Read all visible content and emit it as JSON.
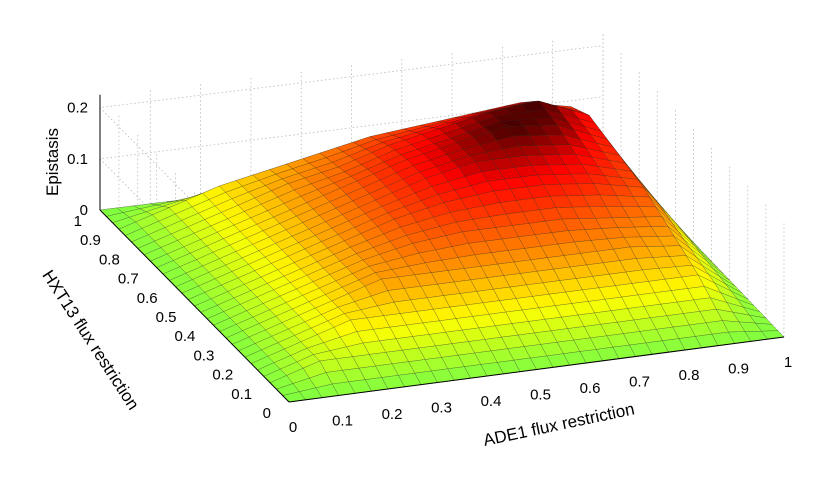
{
  "chart_data": {
    "type": "surface",
    "xlabel": "ADE1 flux restriction",
    "ylabel": "HXT13 flux restriction",
    "zlabel": "Epistasis",
    "xlim": [
      0,
      1
    ],
    "ylim": [
      0,
      1
    ],
    "zlim": [
      0,
      0.2
    ],
    "x_ticks": [
      "0",
      "0.1",
      "0.2",
      "0.3",
      "0.4",
      "0.5",
      "0.6",
      "0.7",
      "0.8",
      "0.9",
      "1"
    ],
    "y_ticks": [
      "0",
      "0.1",
      "0.2",
      "0.3",
      "0.4",
      "0.5",
      "0.6",
      "0.7",
      "0.8",
      "0.9",
      "1"
    ],
    "z_ticks": [
      "0",
      "0.1",
      "0.2"
    ],
    "grid": true,
    "colormap": [
      "#7fff40",
      "#ffff00",
      "#ff8000",
      "#ff0000",
      "#000000"
    ],
    "grid_resolution": 30,
    "x": [
      0,
      0.1,
      0.2,
      0.3,
      0.4,
      0.5,
      0.6,
      0.7,
      0.8,
      0.9,
      1
    ],
    "y": [
      0,
      0.1,
      0.2,
      0.3,
      0.4,
      0.5,
      0.6,
      0.7,
      0.8,
      0.9,
      1
    ],
    "z": [
      [
        0,
        0,
        0,
        0,
        0,
        0,
        0,
        0,
        0,
        0,
        0
      ],
      [
        0,
        0.03,
        0.03,
        0.03,
        0.03,
        0.03,
        0.03,
        0.03,
        0.03,
        0.03,
        0
      ],
      [
        0,
        0.03,
        0.06,
        0.06,
        0.06,
        0.06,
        0.06,
        0.06,
        0.06,
        0.06,
        0
      ],
      [
        0,
        0.03,
        0.06,
        0.09,
        0.09,
        0.09,
        0.09,
        0.09,
        0.09,
        0.08,
        0
      ],
      [
        0,
        0.03,
        0.06,
        0.09,
        0.11,
        0.12,
        0.12,
        0.12,
        0.11,
        0.1,
        0
      ],
      [
        0,
        0.03,
        0.06,
        0.09,
        0.12,
        0.14,
        0.15,
        0.15,
        0.14,
        0.12,
        0
      ],
      [
        0,
        0.03,
        0.06,
        0.09,
        0.12,
        0.15,
        0.17,
        0.17,
        0.16,
        0.13,
        0
      ],
      [
        0,
        0.03,
        0.06,
        0.09,
        0.12,
        0.15,
        0.17,
        0.19,
        0.18,
        0.14,
        0
      ],
      [
        0,
        0.03,
        0.06,
        0.09,
        0.11,
        0.14,
        0.16,
        0.18,
        0.19,
        0.15,
        0
      ],
      [
        0,
        0.03,
        0.06,
        0.08,
        0.1,
        0.12,
        0.13,
        0.14,
        0.15,
        0.13,
        0
      ],
      [
        0,
        0,
        0,
        0,
        0,
        0,
        0,
        0,
        0,
        0,
        0
      ]
    ]
  }
}
